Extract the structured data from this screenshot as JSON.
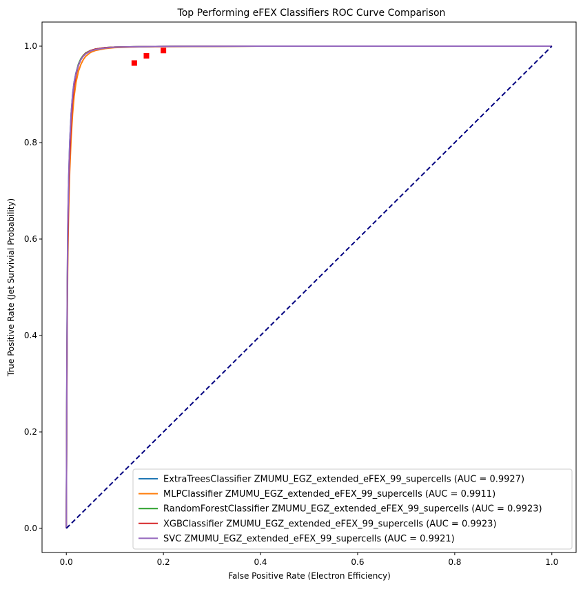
{
  "chart_data": {
    "type": "line",
    "title": "Top Performing eFEX Classifiers ROC Curve Comparison",
    "xlabel": "False Positive Rate (Electron Efficiency)",
    "ylabel": "True Positive Rate (Jet Survivial Probability)",
    "xlim": [
      -0.05,
      1.05
    ],
    "ylim": [
      -0.05,
      1.05
    ],
    "xticks": [
      0.0,
      0.2,
      0.4,
      0.6,
      0.8,
      1.0
    ],
    "yticks": [
      0.0,
      0.2,
      0.4,
      0.6,
      0.8,
      1.0
    ],
    "xtick_labels": [
      "0.0",
      "0.2",
      "0.4",
      "0.6",
      "0.8",
      "1.0"
    ],
    "ytick_labels": [
      "0.0",
      "0.2",
      "0.4",
      "0.6",
      "0.8",
      "1.0"
    ],
    "grid": false,
    "legend_position": "lower-right",
    "series": [
      {
        "name": "ExtraTreesClassifier ZMUMU_EGZ_extended_eFEX_99_supercells (AUC = 0.9927)",
        "color": "#1f77b4",
        "x": [
          0,
          0.001,
          0.002,
          0.003,
          0.005,
          0.007,
          0.01,
          0.013,
          0.016,
          0.02,
          0.025,
          0.03,
          0.035,
          0.04,
          0.05,
          0.06,
          0.08,
          0.1,
          0.15,
          0.2,
          0.4,
          0.6,
          0.8,
          1.0
        ],
        "y": [
          0,
          0.3,
          0.5,
          0.62,
          0.73,
          0.8,
          0.86,
          0.9,
          0.925,
          0.945,
          0.962,
          0.973,
          0.98,
          0.985,
          0.991,
          0.994,
          0.997,
          0.998,
          0.999,
          0.9995,
          1.0,
          1.0,
          1.0,
          1.0
        ]
      },
      {
        "name": "MLPClassifier ZMUMU_EGZ_extended_eFEX_99_supercells (AUC = 0.9911)",
        "color": "#ff7f0e",
        "x": [
          0,
          0.001,
          0.002,
          0.003,
          0.005,
          0.007,
          0.01,
          0.013,
          0.016,
          0.02,
          0.025,
          0.03,
          0.035,
          0.04,
          0.05,
          0.06,
          0.08,
          0.1,
          0.15,
          0.2,
          0.4,
          0.6,
          0.8,
          1.0
        ],
        "y": [
          0,
          0.25,
          0.44,
          0.56,
          0.67,
          0.74,
          0.81,
          0.86,
          0.895,
          0.925,
          0.948,
          0.962,
          0.972,
          0.979,
          0.987,
          0.991,
          0.995,
          0.997,
          0.9985,
          0.999,
          1.0,
          1.0,
          1.0,
          1.0
        ]
      },
      {
        "name": "RandomForestClassifier ZMUMU_EGZ_extended_eFEX_99_supercells (AUC = 0.9923)",
        "color": "#2ca02c",
        "x": [
          0,
          0.001,
          0.002,
          0.003,
          0.005,
          0.007,
          0.01,
          0.013,
          0.016,
          0.02,
          0.025,
          0.03,
          0.035,
          0.04,
          0.05,
          0.06,
          0.08,
          0.1,
          0.15,
          0.2,
          0.4,
          0.6,
          0.8,
          1.0
        ],
        "y": [
          0,
          0.28,
          0.48,
          0.6,
          0.71,
          0.78,
          0.85,
          0.895,
          0.922,
          0.944,
          0.963,
          0.974,
          0.981,
          0.986,
          0.991,
          0.994,
          0.997,
          0.998,
          0.999,
          0.9995,
          1.0,
          1.0,
          1.0,
          1.0
        ]
      },
      {
        "name": "XGBClassifier ZMUMU_EGZ_extended_eFEX_99_supercells (AUC = 0.9923)",
        "color": "#d62728",
        "x": [
          0,
          0.001,
          0.002,
          0.003,
          0.005,
          0.007,
          0.01,
          0.013,
          0.016,
          0.02,
          0.025,
          0.03,
          0.035,
          0.04,
          0.05,
          0.06,
          0.08,
          0.1,
          0.15,
          0.2,
          0.4,
          0.6,
          0.8,
          1.0
        ],
        "y": [
          0,
          0.27,
          0.47,
          0.59,
          0.7,
          0.77,
          0.84,
          0.888,
          0.916,
          0.94,
          0.96,
          0.972,
          0.98,
          0.985,
          0.991,
          0.994,
          0.997,
          0.998,
          0.999,
          0.9995,
          1.0,
          1.0,
          1.0,
          1.0
        ]
      },
      {
        "name": "SVC ZMUMU_EGZ_extended_eFEX_99_supercells (AUC = 0.9921)",
        "color": "#9467bd",
        "x": [
          0,
          0.001,
          0.002,
          0.003,
          0.005,
          0.007,
          0.01,
          0.013,
          0.016,
          0.02,
          0.025,
          0.03,
          0.035,
          0.04,
          0.05,
          0.06,
          0.08,
          0.1,
          0.15,
          0.2,
          0.4,
          0.6,
          0.8,
          1.0
        ],
        "y": [
          0,
          0.3,
          0.51,
          0.63,
          0.73,
          0.8,
          0.86,
          0.9,
          0.925,
          0.944,
          0.961,
          0.972,
          0.979,
          0.984,
          0.99,
          0.993,
          0.996,
          0.998,
          0.999,
          0.9995,
          1.0,
          1.0,
          1.0,
          1.0
        ]
      }
    ],
    "diagonal": {
      "color": "#000080",
      "x": [
        0,
        1
      ],
      "y": [
        0,
        1
      ],
      "style": "dashed"
    },
    "markers": {
      "color": "#ff0000",
      "shape": "square",
      "x": [
        0.14,
        0.165,
        0.2
      ],
      "y": [
        0.965,
        0.98,
        0.991
      ]
    }
  }
}
